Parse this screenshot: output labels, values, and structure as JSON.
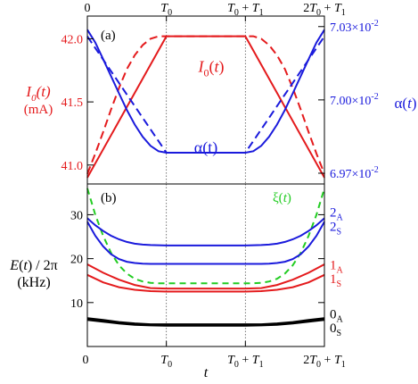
{
  "chart_data": [
    {
      "panel_label": "(a)",
      "type": "line",
      "x_tick_labels_top": [
        "0",
        "T0",
        "T0 + T1",
        "2T0 + T1"
      ],
      "x_ticks": [
        0,
        1,
        2,
        3
      ],
      "left_axis": {
        "label_line1": "I0(t)",
        "label_line2": "(mA)",
        "tick_labels": [
          "41.0",
          "41.5",
          "42.0"
        ],
        "ticks": [
          41.0,
          41.5,
          42.0
        ],
        "ylim": [
          40.85,
          42.18
        ],
        "color": "#e41a1c"
      },
      "right_axis": {
        "label": "α(t)",
        "tick_labels": [
          "6.97×10-2",
          "7.00×10-2",
          "7.03×10-2"
        ],
        "ticks": [
          0.0697,
          0.07,
          0.0703
        ],
        "ylim": [
          0.069656,
          0.070343
        ],
        "color": "#1a1adc"
      },
      "series": [
        {
          "name": "I0(t)",
          "axis": "left",
          "color": "#e41a1c",
          "dash": "solid",
          "x": [
            0,
            1,
            2,
            3
          ],
          "y": [
            40.9,
            42.02,
            42.02,
            40.9
          ]
        },
        {
          "axis": "left",
          "color": "#e41a1c",
          "dash": "dashed",
          "x": [
            0,
            0.1,
            0.2,
            0.3,
            0.4,
            0.5,
            0.6,
            0.7,
            0.8,
            0.9,
            1,
            2,
            2.1,
            2.2,
            2.3,
            2.4,
            2.5,
            2.6,
            2.7,
            2.8,
            2.9,
            3
          ],
          "y": [
            40.93,
            41.09,
            41.26,
            41.44,
            41.61,
            41.76,
            41.87,
            41.95,
            42.0,
            42.02,
            42.02,
            42.02,
            42.02,
            42.0,
            41.95,
            41.87,
            41.76,
            41.61,
            41.44,
            41.26,
            41.09,
            40.93
          ]
        },
        {
          "name": "α(t)",
          "axis": "right",
          "color": "#1a1adc",
          "dash": "solid",
          "x": [
            0,
            0.1,
            0.2,
            0.3,
            0.4,
            0.5,
            0.6,
            0.7,
            0.8,
            0.9,
            1,
            2,
            2.1,
            2.2,
            2.3,
            2.4,
            2.5,
            2.6,
            2.7,
            2.8,
            2.9,
            3
          ],
          "y": [
            0.070287,
            0.070235,
            0.070167,
            0.070097,
            0.070027,
            0.069959,
            0.069899,
            0.069849,
            0.069812,
            0.06979,
            0.069784,
            0.069784,
            0.06979,
            0.069812,
            0.069849,
            0.069899,
            0.069959,
            0.070027,
            0.070097,
            0.070167,
            0.070235,
            0.070287
          ]
        },
        {
          "axis": "right",
          "color": "#1a1adc",
          "dash": "dashed",
          "x": [
            0,
            1,
            2,
            3
          ],
          "y": [
            0.07026,
            0.069784,
            0.069784,
            0.07026
          ]
        }
      ],
      "annotations": [
        {
          "text": "I0(t)",
          "color": "#e41a1c",
          "at_x": 1.5,
          "at_y_left": 41.78
        },
        {
          "text": "α(t)",
          "color": "#1a1adc",
          "at_x": 1.5,
          "at_y_left": 41.14
        }
      ]
    },
    {
      "panel_label": "(b)",
      "type": "line",
      "xlabel": "t",
      "x_tick_labels": [
        "0",
        "T0",
        "T0 + T1",
        "2T0 + T1"
      ],
      "x_ticks": [
        0,
        1,
        2,
        3
      ],
      "ylabel_line1": "E(t) / 2π",
      "ylabel_line2": "(kHz)",
      "ylim": [
        0,
        37
      ],
      "y_ticks": [
        10,
        20,
        30
      ],
      "y_tick_labels": [
        "10",
        "20",
        "30"
      ],
      "series": [
        {
          "name": "ξ(t)",
          "color": "#22cc22",
          "dash": "dashed",
          "x": [
            0,
            0.1,
            0.2,
            0.3,
            0.4,
            0.5,
            0.6,
            0.7,
            0.8,
            0.9,
            1,
            2,
            2.1,
            2.2,
            2.3,
            2.4,
            2.5,
            2.6,
            2.7,
            2.8,
            2.9,
            3
          ],
          "y": [
            36,
            30,
            25.2,
            21.3,
            18.5,
            16.6,
            15.4,
            14.8,
            14.5,
            14.4,
            14.4,
            14.4,
            14.4,
            14.5,
            14.8,
            15.4,
            16.6,
            18.5,
            21.3,
            25.2,
            30,
            36
          ]
        },
        {
          "name": "2A",
          "color": "#1a1adc",
          "dash": "solid",
          "x": [
            0,
            0.1,
            0.2,
            0.3,
            0.4,
            0.5,
            0.6,
            0.7,
            0.8,
            0.9,
            1,
            2,
            2.1,
            2.2,
            2.3,
            2.4,
            2.5,
            2.6,
            2.7,
            2.8,
            2.9,
            3
          ],
          "y": [
            29.2,
            27.6,
            26.3,
            25.2,
            24.4,
            23.8,
            23.4,
            23.2,
            23.1,
            23.05,
            23.0,
            23.0,
            23.05,
            23.1,
            23.2,
            23.4,
            23.8,
            24.4,
            25.2,
            26.3,
            27.6,
            29.2
          ]
        },
        {
          "name": "2S",
          "color": "#1a1adc",
          "dash": "solid",
          "x": [
            0,
            0.1,
            0.2,
            0.3,
            0.4,
            0.5,
            0.6,
            0.7,
            0.8,
            0.9,
            1,
            2,
            2.1,
            2.2,
            2.3,
            2.4,
            2.5,
            2.6,
            2.7,
            2.8,
            2.9,
            3
          ],
          "y": [
            28.4,
            25.2,
            22.8,
            21.0,
            19.9,
            19.3,
            19.0,
            18.85,
            18.8,
            18.8,
            18.8,
            18.8,
            18.8,
            18.8,
            18.85,
            19.0,
            19.3,
            19.9,
            21.0,
            22.8,
            25.2,
            28.4
          ]
        },
        {
          "name": "1A",
          "color": "#e41a1c",
          "dash": "solid",
          "x": [
            0,
            0.2,
            0.4,
            0.6,
            0.8,
            1,
            2,
            2.2,
            2.4,
            2.6,
            2.8,
            3
          ],
          "y": [
            18.7,
            16.8,
            15.2,
            14.0,
            13.3,
            13.2,
            13.2,
            13.3,
            14.0,
            15.2,
            16.8,
            18.7
          ]
        },
        {
          "name": "1S",
          "color": "#e41a1c",
          "dash": "solid",
          "x": [
            0,
            0.2,
            0.4,
            0.6,
            0.8,
            1,
            2,
            2.2,
            2.4,
            2.6,
            2.8,
            3
          ],
          "y": [
            16.3,
            14.6,
            13.5,
            12.9,
            12.6,
            12.5,
            12.5,
            12.6,
            12.9,
            13.5,
            14.6,
            16.3
          ]
        },
        {
          "name": "0A",
          "color": "#000000",
          "dash": "solid",
          "x": [
            0,
            0.2,
            0.4,
            0.6,
            0.8,
            1,
            2,
            2.2,
            2.4,
            2.6,
            2.8,
            3
          ],
          "y": [
            6.4,
            6.0,
            5.5,
            5.2,
            5.0,
            5.0,
            5.0,
            5.0,
            5.2,
            5.5,
            6.0,
            6.4
          ]
        },
        {
          "name": "0S",
          "color": "#000000",
          "dash": "solid",
          "x": [
            0,
            0.2,
            0.4,
            0.6,
            0.8,
            1,
            2,
            2.2,
            2.4,
            2.6,
            2.8,
            3
          ],
          "y": [
            6.1,
            5.7,
            5.3,
            5.0,
            4.85,
            4.8,
            4.8,
            4.85,
            5.0,
            5.3,
            5.7,
            6.1
          ]
        }
      ],
      "right_labels": [
        {
          "main": "ξ(t)",
          "sub": "",
          "color": "#22cc22",
          "at_y": 34.0,
          "right": false
        },
        {
          "main": "2",
          "sub": "A",
          "color": "#1a1adc",
          "at_y": 30.6,
          "right": true
        },
        {
          "main": "2",
          "sub": "S",
          "color": "#1a1adc",
          "at_y": 27.3,
          "right": true
        },
        {
          "main": "1",
          "sub": "A",
          "color": "#e41a1c",
          "at_y": 18.6,
          "right": true
        },
        {
          "main": "1",
          "sub": "S",
          "color": "#e41a1c",
          "at_y": 15.4,
          "right": true
        },
        {
          "main": "0",
          "sub": "A",
          "color": "#000000",
          "at_y": 7.4,
          "right": true
        },
        {
          "main": "0",
          "sub": "S",
          "color": "#000000",
          "at_y": 4.3,
          "right": true
        }
      ]
    }
  ]
}
